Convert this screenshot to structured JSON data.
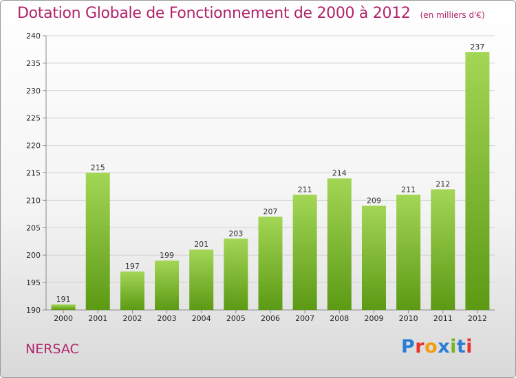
{
  "header": {
    "title": "Dotation Globale de Fonctionnement de 2000 à 2012",
    "unit": "(en milliers d'€)"
  },
  "commune": "NERSAC",
  "logo": {
    "text": "Proxiti",
    "colors": [
      "#2a7fd4",
      "#e8322d",
      "#f39c12",
      "#2a7fd4",
      "#7ab51d",
      "#2a7fd4",
      "#e8322d"
    ]
  },
  "colors": {
    "bar_light": "#9fd352",
    "bar_dark": "#5f9e16",
    "title": "#b0246b"
  },
  "chart_data": {
    "type": "bar",
    "categories": [
      "2000",
      "2001",
      "2002",
      "2003",
      "2004",
      "2005",
      "2006",
      "2007",
      "2008",
      "2009",
      "2010",
      "2011",
      "2012"
    ],
    "values": [
      191,
      215,
      197,
      199,
      201,
      203,
      207,
      211,
      214,
      209,
      211,
      212,
      237
    ],
    "title": "Dotation Globale de Fonctionnement de 2000 à 2012",
    "ylim": [
      190,
      240
    ],
    "yticks": [
      190,
      195,
      200,
      205,
      210,
      215,
      220,
      225,
      230,
      235,
      240
    ],
    "grid": true
  }
}
